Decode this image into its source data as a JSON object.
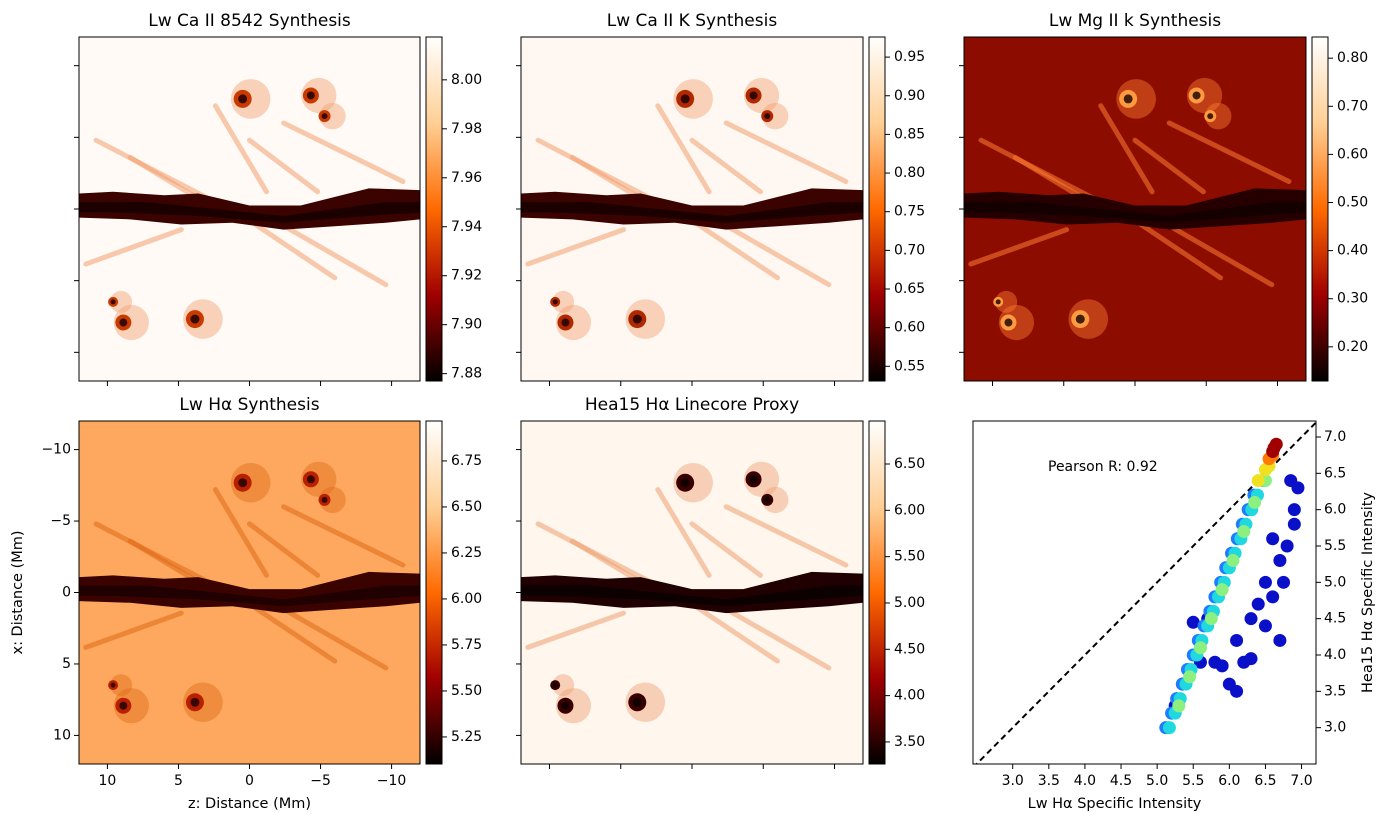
{
  "chart_data": [
    {
      "type": "heatmap",
      "title": "Lw Ca II 8542 Synthesis",
      "colormap": [
        "#000000",
        "#a00000",
        "#ff6a00",
        "#ffcf95",
        "#ffffff"
      ],
      "clim": [
        7.877,
        8.0175
      ],
      "cticks": [
        {
          "value": 7.88,
          "label": "7.88"
        },
        {
          "value": 7.9,
          "label": "7.90"
        },
        {
          "value": 7.92,
          "label": "7.92"
        },
        {
          "value": 7.94,
          "label": "7.94"
        },
        {
          "value": 7.96,
          "label": "7.96"
        },
        {
          "value": 7.98,
          "label": "7.98"
        },
        {
          "value": 8.0,
          "label": "8.00"
        }
      ]
    },
    {
      "type": "heatmap",
      "title": "Lw Ca II K Synthesis",
      "colormap": [
        "#000000",
        "#a00000",
        "#ff6a00",
        "#ffcf95",
        "#ffffff"
      ],
      "clim": [
        0.531,
        0.976
      ],
      "cticks": [
        0.55,
        {
          "value": 0.6,
          "label": "0.60"
        },
        0.65,
        {
          "value": 0.7,
          "label": "0.70"
        },
        0.75,
        {
          "value": 0.8,
          "label": "0.80"
        },
        0.85,
        {
          "value": 0.9,
          "label": "0.90"
        },
        0.95
      ]
    },
    {
      "type": "heatmap",
      "title": "Lw Mg II k Synthesis",
      "colormap": [
        "#000000",
        "#a00000",
        "#ff6a00",
        "#ffcf95",
        "#ffffff"
      ],
      "clim": [
        0.129,
        0.844
      ],
      "cticks": [
        {
          "value": 0.2,
          "label": "0.20"
        },
        {
          "value": 0.3,
          "label": "0.30"
        },
        {
          "value": 0.4,
          "label": "0.40"
        },
        {
          "value": 0.5,
          "label": "0.50"
        },
        {
          "value": 0.6,
          "label": "0.60"
        },
        {
          "value": 0.7,
          "label": "0.70"
        },
        {
          "value": 0.8,
          "label": "0.80"
        }
      ]
    },
    {
      "type": "heatmap",
      "title": "Lw Hα Synthesis",
      "colormap": [
        "#000000",
        "#a00000",
        "#ff6a00",
        "#ffcf95",
        "#ffffff"
      ],
      "clim": [
        5.103,
        6.967
      ],
      "cticks": [
        5.25,
        {
          "value": 5.5,
          "label": "5.50"
        },
        5.75,
        {
          "value": 6.0,
          "label": "6.00"
        },
        6.25,
        {
          "value": 6.5,
          "label": "6.50"
        },
        6.75
      ],
      "xlabel": "z: Distance (Mm)",
      "ylabel": "x: Distance (Mm)",
      "xlim": [
        12,
        -12
      ],
      "ylim": [
        12,
        -12
      ],
      "xticks": [
        10,
        5,
        0,
        {
          "value": -5,
          "label": "−5"
        },
        {
          "value": -10,
          "label": "−10"
        }
      ],
      "yticks": [
        {
          "value": -10,
          "label": "−10"
        },
        {
          "value": -5,
          "label": "−5"
        },
        0,
        5,
        10
      ]
    },
    {
      "type": "heatmap",
      "title": "Hea15 Hα Linecore Proxy",
      "colormap": [
        "#000000",
        "#a00000",
        "#ff6a00",
        "#ffcf95",
        "#ffffff"
      ],
      "clim": [
        3.262,
        6.964
      ],
      "cticks": [
        {
          "value": 3.5,
          "label": "3.50"
        },
        {
          "value": 4.0,
          "label": "4.00"
        },
        {
          "value": 4.5,
          "label": "4.50"
        },
        {
          "value": 5.0,
          "label": "5.00"
        },
        {
          "value": 5.5,
          "label": "5.50"
        },
        {
          "value": 6.0,
          "label": "6.00"
        },
        {
          "value": 6.5,
          "label": "6.50"
        }
      ]
    },
    {
      "type": "scatter",
      "xlabel": "Lw Hα Specific Intensity",
      "ylabel": "Hea15 Hα Specific Intensity",
      "annotation": "Pearson R: 0.92",
      "xlim": [
        2.45,
        7.2
      ],
      "ylim": [
        2.5,
        7.22
      ],
      "yaxis_side": "right",
      "xticks": [
        {
          "value": 3,
          "label": "3.0"
        },
        3.5,
        {
          "value": 4,
          "label": "4.0"
        },
        4.5,
        {
          "value": 5,
          "label": "5.0"
        },
        5.5,
        {
          "value": 6,
          "label": "6.0"
        },
        6.5,
        {
          "value": 7,
          "label": "7.0"
        }
      ],
      "yticks": [
        {
          "value": 3,
          "label": "3.0"
        },
        3.5,
        {
          "value": 4,
          "label": "4.0"
        },
        4.5,
        {
          "value": 5,
          "label": "5.0"
        },
        5.5,
        {
          "value": 6,
          "label": "6.0"
        },
        6.5,
        {
          "value": 7,
          "label": "7.0"
        }
      ],
      "series": [
        {
          "color": "#0a0fc8",
          "x": [
            5.6,
            5.8,
            5.9,
            6.0,
            6.1,
            6.2,
            6.3,
            5.5,
            5.7,
            6.1,
            6.3,
            6.4,
            6.6,
            6.5,
            6.7,
            6.8,
            6.9,
            6.95,
            6.9,
            6.75,
            5.35,
            5.25,
            6.5,
            6.6,
            6.85,
            6.7
          ],
          "y": [
            3.9,
            3.9,
            3.85,
            3.6,
            3.5,
            3.9,
            3.95,
            4.45,
            4.5,
            4.2,
            4.5,
            4.7,
            4.8,
            5.0,
            5.3,
            5.5,
            5.8,
            6.3,
            6.0,
            5.0,
            3.6,
            3.3,
            4.4,
            5.6,
            6.4,
            4.2
          ]
        },
        {
          "color": "#1e7cff",
          "x": [
            5.12,
            5.2,
            5.27,
            5.35,
            5.42,
            5.5,
            5.57,
            5.65,
            5.73,
            5.8,
            5.88,
            5.95,
            6.03,
            6.11,
            6.18,
            6.26,
            6.34
          ],
          "y": [
            3.0,
            3.2,
            3.4,
            3.6,
            3.8,
            4.0,
            4.2,
            4.4,
            4.6,
            4.8,
            5.0,
            5.2,
            5.4,
            5.6,
            5.8,
            6.0,
            6.2
          ]
        },
        {
          "color": "#20d8e0",
          "x": [
            5.17,
            5.25,
            5.32,
            5.4,
            5.47,
            5.55,
            5.62,
            5.7,
            5.78,
            5.85,
            5.93,
            6.0,
            6.08,
            6.16,
            6.23,
            6.31,
            6.39,
            6.46
          ],
          "y": [
            3.0,
            3.2,
            3.4,
            3.6,
            3.8,
            4.0,
            4.2,
            4.4,
            4.6,
            4.8,
            5.0,
            5.2,
            5.4,
            5.6,
            5.8,
            6.0,
            6.2,
            6.4
          ]
        },
        {
          "color": "#8cf080",
          "x": [
            5.3,
            5.45,
            5.6,
            5.75,
            5.9,
            6.05,
            6.2,
            6.35,
            6.5
          ],
          "y": [
            3.3,
            3.7,
            4.1,
            4.5,
            4.9,
            5.3,
            5.7,
            6.1,
            6.4
          ]
        },
        {
          "color": "#f0e020",
          "x": [
            6.4,
            6.5,
            6.55
          ],
          "y": [
            6.4,
            6.55,
            6.6
          ]
        },
        {
          "color": "#ff7a00",
          "x": [
            6.55,
            6.6
          ],
          "y": [
            6.7,
            6.75
          ]
        },
        {
          "color": "#a00000",
          "x": [
            6.6,
            6.62,
            6.65
          ],
          "y": [
            6.8,
            6.85,
            6.9
          ]
        }
      ]
    }
  ]
}
